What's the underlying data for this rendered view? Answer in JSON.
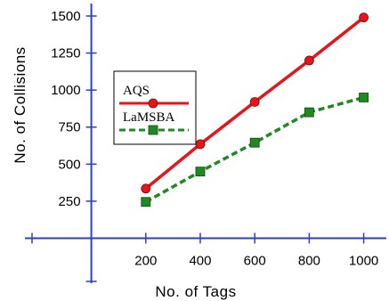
{
  "chart_data": {
    "type": "line",
    "title": "",
    "xlabel": "No. of Tags",
    "ylabel": "No. of Collisions",
    "x": [
      200,
      400,
      600,
      800,
      1000
    ],
    "x_ticks": [
      "200",
      "400",
      "600",
      "800",
      "1000"
    ],
    "y_ticks": [
      "250",
      "500",
      "750",
      "1000",
      "1250",
      "1500"
    ],
    "xlim": [
      -15,
      1070
    ],
    "ylim": [
      -15,
      1560
    ],
    "grid": false,
    "legend_position": "upper-left",
    "series": [
      {
        "name": "AQS",
        "values": [
          335,
          635,
          920,
          1200,
          1490
        ],
        "color": "#e8141b",
        "marker": "circle",
        "line_style": "solid"
      },
      {
        "name": "LaMSBA",
        "values": [
          245,
          450,
          645,
          850,
          950
        ],
        "color": "#1f8a1f",
        "marker": "square",
        "line_style": "dashed"
      }
    ]
  }
}
